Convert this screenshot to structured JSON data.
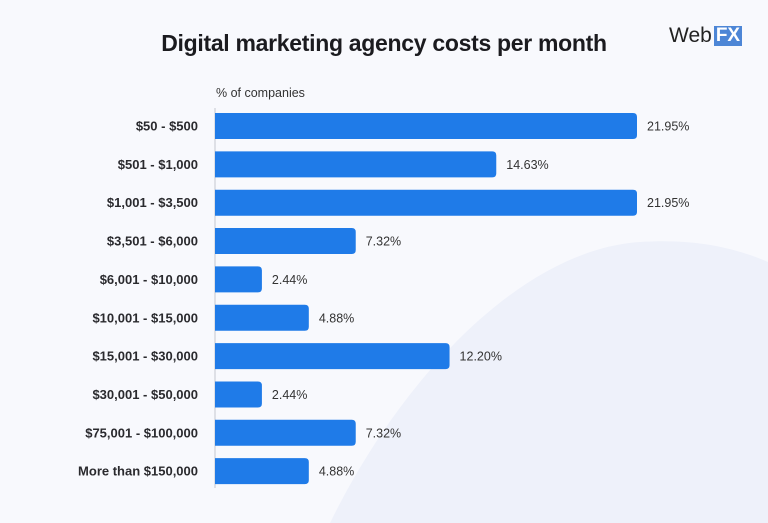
{
  "logo": {
    "text": "WebFX",
    "word": "Web",
    "mark": "FX"
  },
  "chart_data": {
    "type": "bar",
    "orientation": "horizontal",
    "title": "Digital marketing agency costs per month",
    "xlabel": "% of companies",
    "categories": [
      "$50 - $500",
      "$501 - $1,000",
      "$1,001 - $3,500",
      "$3,501 - $6,000",
      "$6,001 - $10,000",
      "$10,001 - $15,000",
      "$15,001 - $30,000",
      "$30,001 - $50,000",
      "$75,001 - $100,000",
      "More than $150,000"
    ],
    "values": [
      21.95,
      14.63,
      21.95,
      7.32,
      2.44,
      4.88,
      12.2,
      2.44,
      7.32,
      4.88
    ],
    "data_labels": [
      "21.95%",
      "14.63%",
      "21.95%",
      "7.32%",
      "2.44%",
      "4.88%",
      "12.20%",
      "2.44%",
      "7.32%",
      "4.88%"
    ],
    "grid": false,
    "colors": {
      "bar": "#1f7be8",
      "background": "#f8f9fd"
    }
  }
}
